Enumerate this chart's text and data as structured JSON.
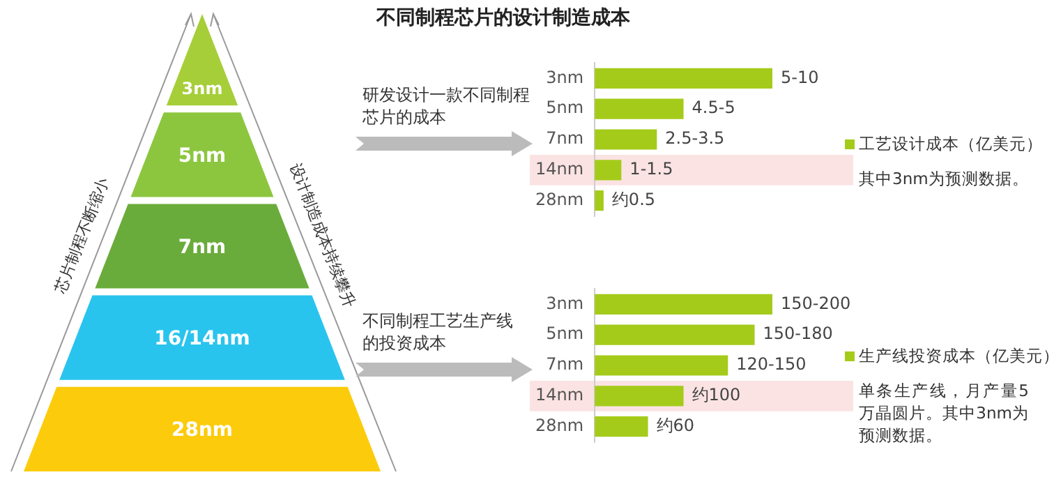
{
  "chart_data": [
    {
      "type": "other",
      "categories": [
        "3nm",
        "5nm",
        "7nm",
        "16/14nm",
        "28nm"
      ],
      "colors": [
        "#a6ce39",
        "#8cc63f",
        "#6aac3b",
        "#29c4ee",
        "#fccb0b"
      ],
      "annotations": [
        "芯片制程不断缩小",
        "设计制造成本持续攀升"
      ]
    },
    {
      "type": "bar",
      "orientation": "horizontal",
      "title": "不同制程芯片的设计制造成本",
      "tick_labels": "y",
      "legend": "right",
      "categories": [
        "3nm",
        "5nm",
        "7nm",
        "14nm",
        "28nm"
      ],
      "series": [
        {
          "name": "工艺设计成本（亿美元）",
          "color": "#a4cb1a",
          "values": [
            10,
            5,
            3.5,
            1.5,
            0.5
          ],
          "value_labels": [
            "5-10",
            "4.5-5",
            "2.5-3.5",
            "1-1.5",
            "约0.5"
          ]
        }
      ],
      "bands": [
        {
          "axis": "y",
          "from": "14nm",
          "to": "14nm",
          "color": "#fbe3e3"
        }
      ],
      "annotations": [
        "研发设计一款不同制程芯片的成本",
        "其中3nm为预测数据。"
      ]
    },
    {
      "type": "bar",
      "orientation": "horizontal",
      "tick_labels": "y",
      "legend": "right",
      "categories": [
        "3nm",
        "5nm",
        "7nm",
        "14nm",
        "28nm"
      ],
      "series": [
        {
          "name": "生产线投资成本（亿美元）",
          "color": "#a4cb1a",
          "values": [
            200,
            180,
            150,
            100,
            60
          ],
          "value_labels": [
            "150-200",
            "150-180",
            "120-150",
            "约100",
            "约60"
          ]
        }
      ],
      "bands": [
        {
          "axis": "y",
          "from": "14nm",
          "to": "14nm",
          "color": "#fbe3e3"
        }
      ],
      "annotations": [
        "不同制程工艺生产线的投资成本",
        "单条生产线，月产量5万晶圆片。其中3nm为预测数据。"
      ]
    }
  ]
}
